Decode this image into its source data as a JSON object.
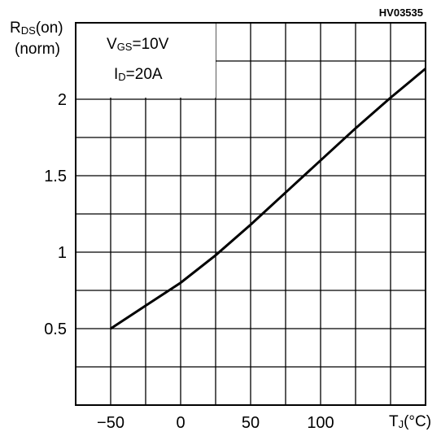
{
  "figure_code": "HV03535",
  "chart_data": {
    "type": "line",
    "ylabel": {
      "main": "R",
      "sub": "DS",
      "rest": "(on)",
      "unit": "(norm)"
    },
    "xlabel": {
      "main": "T",
      "sub": "J",
      "rest": "(°C)"
    },
    "conditions": [
      {
        "main": "V",
        "sub": "GS",
        "rest": "=10V"
      },
      {
        "main": "I",
        "sub": "D",
        "rest": "=20A"
      }
    ],
    "xlim": [
      -75,
      175
    ],
    "ylim": [
      0,
      2.5
    ],
    "x_ticks": [
      -50,
      0,
      50,
      100
    ],
    "x_tick_labels": [
      "−50",
      "0",
      "50",
      "100"
    ],
    "y_ticks": [
      0.5,
      1,
      1.5,
      2
    ],
    "y_tick_labels": [
      "0.5",
      "1",
      "1.5",
      "2"
    ],
    "x_grid_step": 25,
    "y_grid_step": 0.25,
    "grid": true,
    "series": [
      {
        "x": [
          -50,
          -25,
          0,
          25,
          50,
          75,
          100,
          125,
          150,
          175
        ],
        "y": [
          0.5,
          0.65,
          0.8,
          0.98,
          1.18,
          1.39,
          1.6,
          1.81,
          2.01,
          2.2
        ]
      }
    ]
  }
}
